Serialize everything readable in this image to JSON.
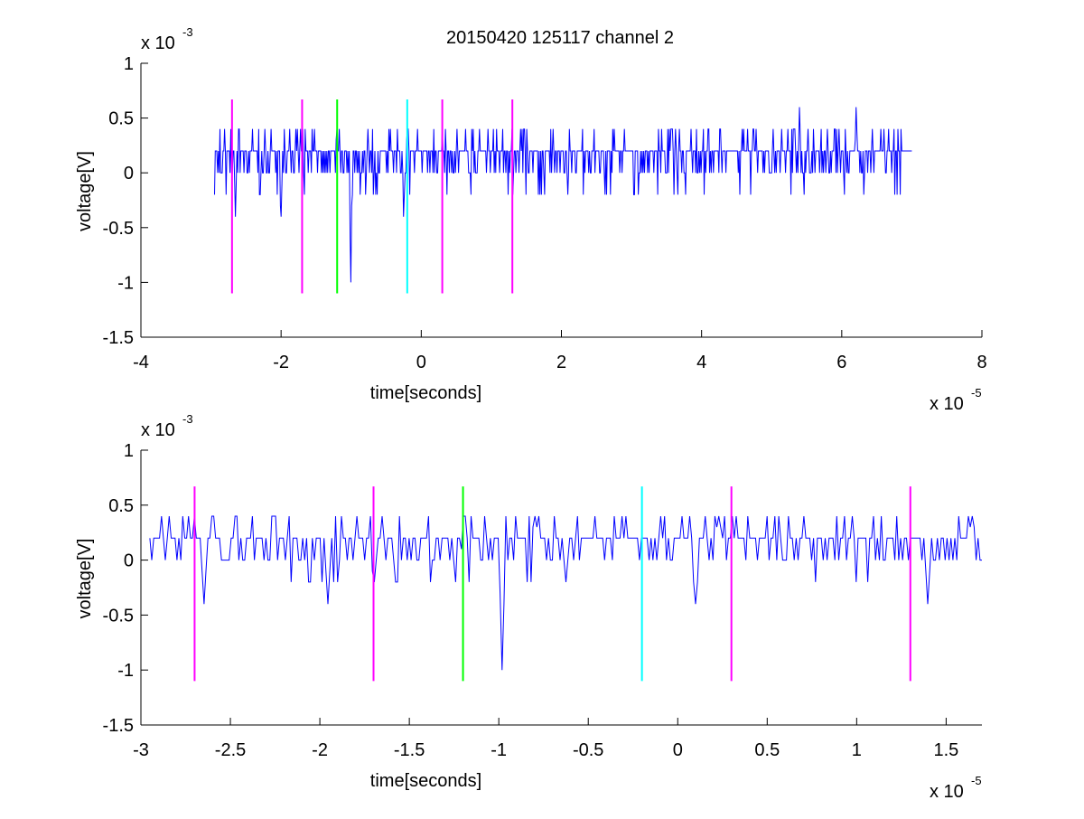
{
  "title": "20150420 125117 channel 2",
  "chart_data": [
    {
      "type": "line",
      "xlabel": "time[seconds]",
      "ylabel": "voltage[V]",
      "x_exponent_label": "x 10",
      "x_exponent": "-5",
      "y_exponent_label": "x 10",
      "y_exponent": "-3",
      "xlim": [
        -4,
        8
      ],
      "ylim": [
        -1.5,
        1
      ],
      "xticks": [
        -4,
        -2,
        0,
        2,
        4,
        6,
        8
      ],
      "xtick_labels": [
        "-4",
        "-2",
        "0",
        "2",
        "4",
        "6",
        "8"
      ],
      "yticks": [
        1,
        0.5,
        0,
        -0.5,
        -1,
        -1.5
      ],
      "ytick_labels": [
        "1",
        "0.5",
        "0",
        "-0.5",
        "-1",
        "-1.5"
      ],
      "series": [
        {
          "color": "#0000ff",
          "values_described": "noise trace from x=-2.95 to x=7.0, mostly between 0 and 0.2 with spikes to 0.4-0.6 and dips near -0.2 to -0.4",
          "x_range": [
            -2.95,
            7.0
          ],
          "dips": [
            [
              -2.65,
              -0.4
            ],
            [
              -2.0,
              -0.4
            ],
            [
              -1.0,
              -1.0
            ],
            [
              -0.25,
              -0.4
            ],
            [
              5.4,
              -0.2
            ]
          ],
          "peaks": [
            [
              -1.2,
              0.4
            ],
            [
              -0.2,
              0.4
            ],
            [
              5.4,
              0.6
            ],
            [
              6.2,
              0.6
            ]
          ]
        }
      ],
      "markers": [
        {
          "x": -2.7,
          "color": "#ff00ff"
        },
        {
          "x": -1.7,
          "color": "#ff00ff"
        },
        {
          "x": -1.2,
          "color": "#00ff00"
        },
        {
          "x": -0.2,
          "color": "#00ffff"
        },
        {
          "x": 0.3,
          "color": "#ff00ff"
        },
        {
          "x": 1.3,
          "color": "#ff00ff"
        }
      ],
      "marker_range": [
        -1.1,
        0.67
      ]
    },
    {
      "type": "line",
      "xlabel": "time[seconds]",
      "ylabel": "voltage[V]",
      "x_exponent_label": "x 10",
      "x_exponent": "-5",
      "y_exponent_label": "x 10",
      "y_exponent": "-3",
      "xlim": [
        -3.0,
        1.7
      ],
      "ylim": [
        -1.5,
        1
      ],
      "xticks": [
        -3,
        -2.5,
        -2,
        -1.5,
        -1,
        -0.5,
        0,
        0.5,
        1,
        1.5
      ],
      "xtick_labels": [
        "-3",
        "-2.5",
        "-2",
        "-1.5",
        "-1",
        "-0.5",
        "0",
        "0.5",
        "1",
        "1.5"
      ],
      "yticks": [
        1,
        0.5,
        0,
        -0.5,
        -1,
        -1.5
      ],
      "ytick_labels": [
        "1",
        "0.5",
        "0",
        "-0.5",
        "-1",
        "-1.5"
      ],
      "series": [
        {
          "color": "#0000ff",
          "x_range": [
            -2.95,
            1.7
          ],
          "dips": [
            [
              -2.65,
              -0.4
            ],
            [
              -1.95,
              -0.4
            ],
            [
              -1.7,
              -0.2
            ],
            [
              -0.98,
              -1.0
            ],
            [
              0.1,
              -0.4
            ],
            [
              1.4,
              -0.4
            ]
          ],
          "peaks": [
            [
              -1.2,
              0.4
            ],
            [
              -0.8,
              0.4
            ],
            [
              0.23,
              0.4
            ],
            [
              1.65,
              0.4
            ]
          ]
        }
      ],
      "markers": [
        {
          "x": -2.7,
          "color": "#ff00ff"
        },
        {
          "x": -1.7,
          "color": "#ff00ff"
        },
        {
          "x": -1.2,
          "color": "#00ff00"
        },
        {
          "x": -0.2,
          "color": "#00ffff"
        },
        {
          "x": 0.3,
          "color": "#ff00ff"
        },
        {
          "x": 1.3,
          "color": "#ff00ff"
        }
      ],
      "marker_range": [
        -1.1,
        0.67
      ]
    }
  ]
}
